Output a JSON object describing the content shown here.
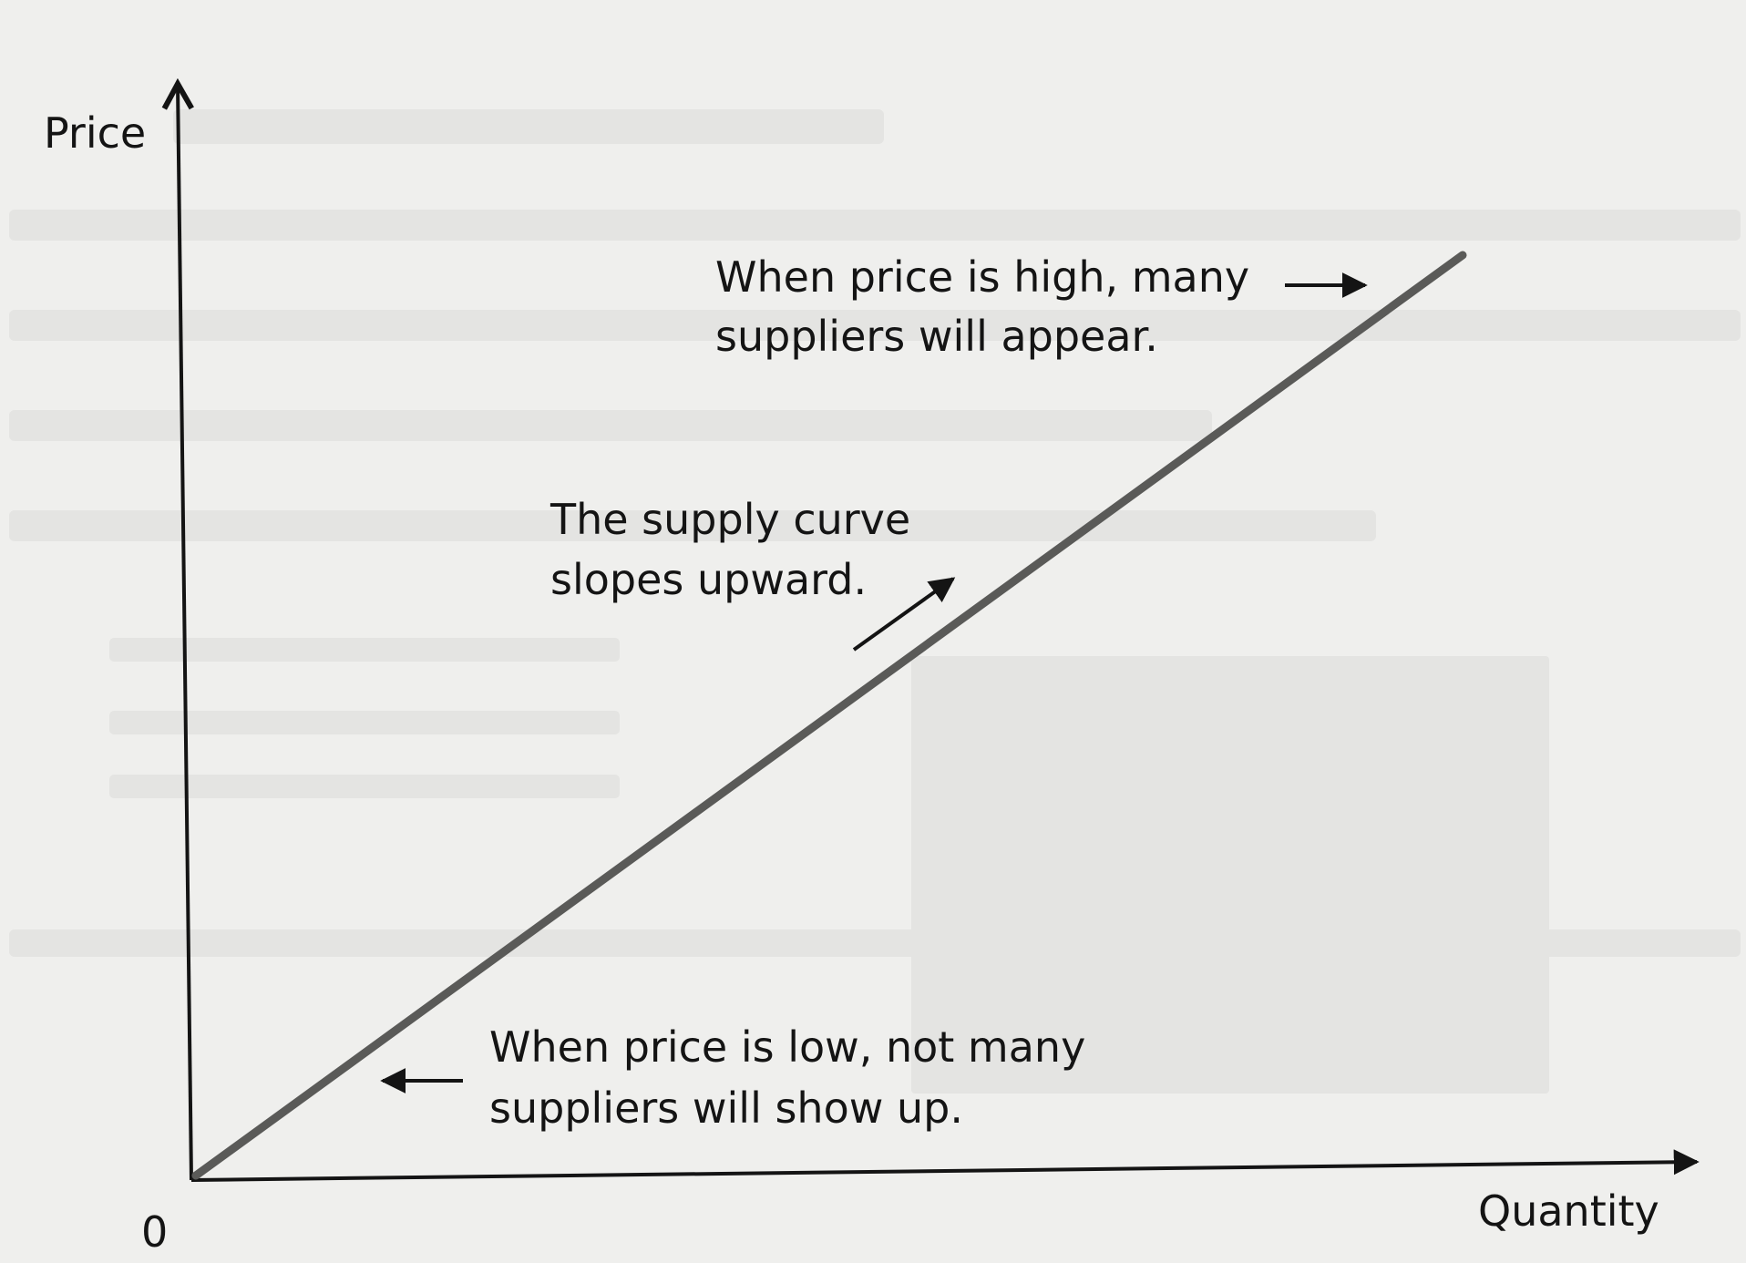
{
  "chart_data": {
    "type": "line",
    "title": "",
    "xlabel": "Quantity",
    "ylabel": "Price",
    "origin_label": "0",
    "x_ticks": [],
    "y_ticks": [],
    "grid": false,
    "legend": "none",
    "series": [
      {
        "values_note": "",
        "x": [
          0,
          10
        ],
        "y": [
          0,
          10
        ]
      }
    ],
    "annotations": [
      {
        "lines": [
          "When price is high, many",
          "suppliers will appear."
        ],
        "arrow": "right"
      },
      {
        "lines": [
          "The supply curve",
          "slopes upward."
        ],
        "arrow": "up-right"
      },
      {
        "lines": [
          "When price is low, not many",
          "suppliers will show up."
        ],
        "arrow": "left"
      }
    ]
  },
  "colors": {
    "background": "#efefed",
    "ink": "#141414",
    "curve": "#5a5a58"
  }
}
